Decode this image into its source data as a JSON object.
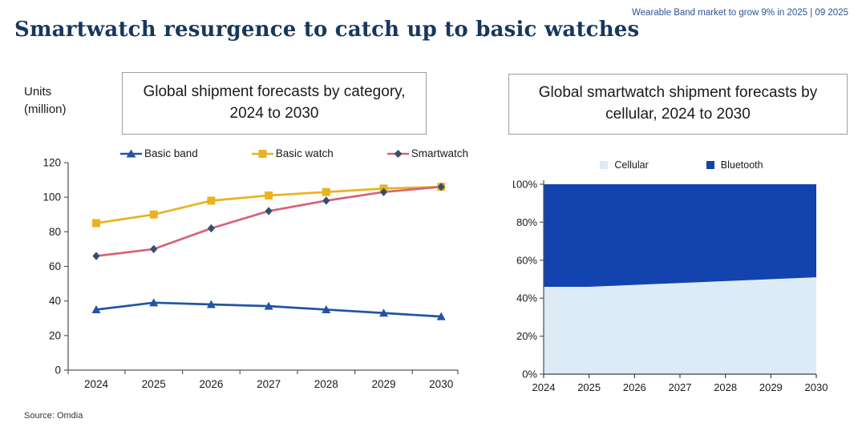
{
  "header": {
    "title": "Smartwatch resurgence to catch up to basic watches",
    "note": "Wearable Band market to grow 9% in 2025 | 09 2025"
  },
  "left_chart": {
    "box_title": "Global shipment forecasts by category, 2024 to 2030",
    "ylabel_line1": "Units",
    "ylabel_line2": "(million)"
  },
  "right_chart": {
    "box_title": "Global smartwatch shipment forecasts by cellular, 2024 to 2030"
  },
  "footer": {
    "source": "Source: Omdia"
  },
  "colors": {
    "title_navy": "#17375d",
    "note_blue": "#2d5491",
    "basic_band_blue": "#2155a3",
    "basic_watch_yellow": "#e8b320",
    "smartwatch_line_pink": "#d9607a",
    "smartwatch_marker_navy": "#31506f",
    "cellular_light_blue": "#ddebf7",
    "bluetooth_royal_blue": "#1243af",
    "axis_gray": "#595959"
  },
  "chart_data": [
    {
      "type": "line",
      "title": "Global shipment forecasts by category, 2024 to 2030",
      "ylabel": "Units (million)",
      "categories": [
        2024,
        2025,
        2026,
        2027,
        2028,
        2029,
        2030
      ],
      "series": [
        {
          "name": "Basic band",
          "marker": "triangle",
          "line_color": "#2155a3",
          "marker_color": "#2155a3",
          "values": [
            35,
            39,
            38,
            37,
            35,
            33,
            31
          ]
        },
        {
          "name": "Basic watch",
          "marker": "square",
          "line_color": "#e8b320",
          "marker_color": "#e8b320",
          "values": [
            85,
            90,
            98,
            101,
            103,
            105,
            106
          ]
        },
        {
          "name": "Smartwatch",
          "marker": "diamond",
          "line_color": "#d9607a",
          "marker_color": "#31506f",
          "values": [
            66,
            70,
            82,
            92,
            98,
            103,
            106
          ]
        }
      ],
      "ylim": [
        0,
        120
      ],
      "yticks": [
        0,
        20,
        40,
        60,
        80,
        100,
        120
      ],
      "grid": false,
      "legend_position": "top"
    },
    {
      "type": "area",
      "title": "Global smartwatch shipment forecasts by cellular, 2024 to 2030",
      "categories": [
        2024,
        2025,
        2026,
        2027,
        2028,
        2029,
        2030
      ],
      "series": [
        {
          "name": "Cellular",
          "color": "#ddebf7",
          "values": [
            46,
            46,
            47,
            48,
            49,
            50,
            51
          ]
        },
        {
          "name": "Bluetooth",
          "color": "#1243af",
          "values": [
            54,
            54,
            53,
            52,
            51,
            50,
            49
          ]
        }
      ],
      "stacked_to_100_percent": true,
      "ylim": [
        0,
        100
      ],
      "ytick_labels": [
        "0%",
        "20%",
        "40%",
        "60%",
        "80%",
        "100%"
      ],
      "grid": false,
      "legend_position": "top"
    }
  ]
}
